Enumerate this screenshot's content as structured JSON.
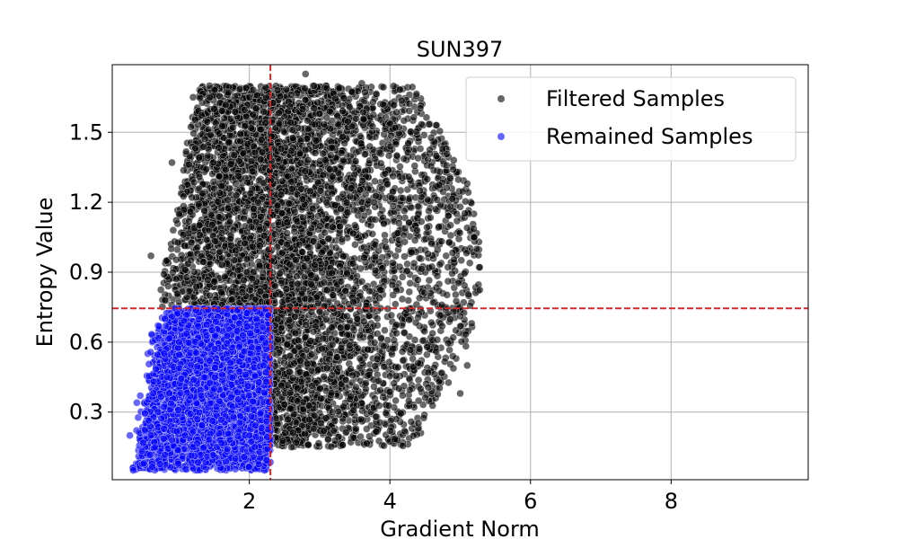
{
  "chart_data": {
    "type": "scatter",
    "title": "SUN397",
    "xlabel": "Gradient Norm",
    "ylabel": "Entropy Value",
    "xlim": [
      0.05,
      9.95
    ],
    "ylim": [
      0.01,
      1.79
    ],
    "xticks": [
      2,
      4,
      6,
      8
    ],
    "yticks": [
      0.3,
      0.6,
      0.9,
      1.2,
      1.5
    ],
    "grid": true,
    "legend_position": "top-right",
    "thresholds": {
      "x": 2.3,
      "y": 0.745,
      "color": "#d62728",
      "style": "dashed"
    },
    "series": [
      {
        "name": "Filtered Samples",
        "color": "#000000",
        "opacity": 0.6,
        "distribution": "samples with gradient norm above 2.3 or entropy above 0.745; gradient norm roughly 0.5 to 5.2, entropy roughly 0.15 to 1.75",
        "sample_points": [
          [
            1.2,
            1.65
          ],
          [
            1.5,
            1.6
          ],
          [
            2.8,
            1.75
          ],
          [
            3.6,
            1.71
          ],
          [
            2.4,
            1.68
          ],
          [
            2.0,
            1.65
          ],
          [
            3.0,
            1.58
          ],
          [
            3.9,
            1.62
          ],
          [
            4.2,
            1.55
          ],
          [
            4.9,
            1.34
          ],
          [
            5.1,
            1.28
          ],
          [
            5.0,
            1.18
          ],
          [
            5.2,
            1.05
          ],
          [
            4.8,
            0.97
          ],
          [
            4.7,
            0.82
          ],
          [
            4.9,
            0.62
          ],
          [
            5.1,
            0.5
          ],
          [
            5.0,
            0.38
          ],
          [
            4.7,
            0.43
          ],
          [
            4.4,
            0.51
          ],
          [
            3.8,
            0.28
          ],
          [
            3.2,
            0.22
          ],
          [
            2.6,
            0.15
          ],
          [
            2.4,
            0.22
          ],
          [
            0.6,
            0.97
          ],
          [
            0.8,
            0.78
          ],
          [
            1.0,
            1.15
          ],
          [
            0.9,
            1.37
          ]
        ]
      },
      {
        "name": "Remained Samples",
        "color": "#0000ff",
        "opacity": 0.6,
        "distribution": "samples with gradient norm at most 2.3 and entropy at most 0.745",
        "sample_points": [
          [
            0.35,
            0.05
          ],
          [
            0.5,
            0.08
          ],
          [
            0.3,
            0.2
          ],
          [
            0.4,
            0.34
          ],
          [
            0.7,
            0.3
          ],
          [
            0.8,
            0.7
          ],
          [
            1.0,
            0.6
          ],
          [
            1.5,
            0.4
          ],
          [
            2.0,
            0.2
          ],
          [
            2.2,
            0.5
          ],
          [
            1.8,
            0.1
          ],
          [
            1.2,
            0.15
          ],
          [
            0.6,
            0.2
          ],
          [
            2.1,
            0.7
          ]
        ]
      }
    ]
  }
}
